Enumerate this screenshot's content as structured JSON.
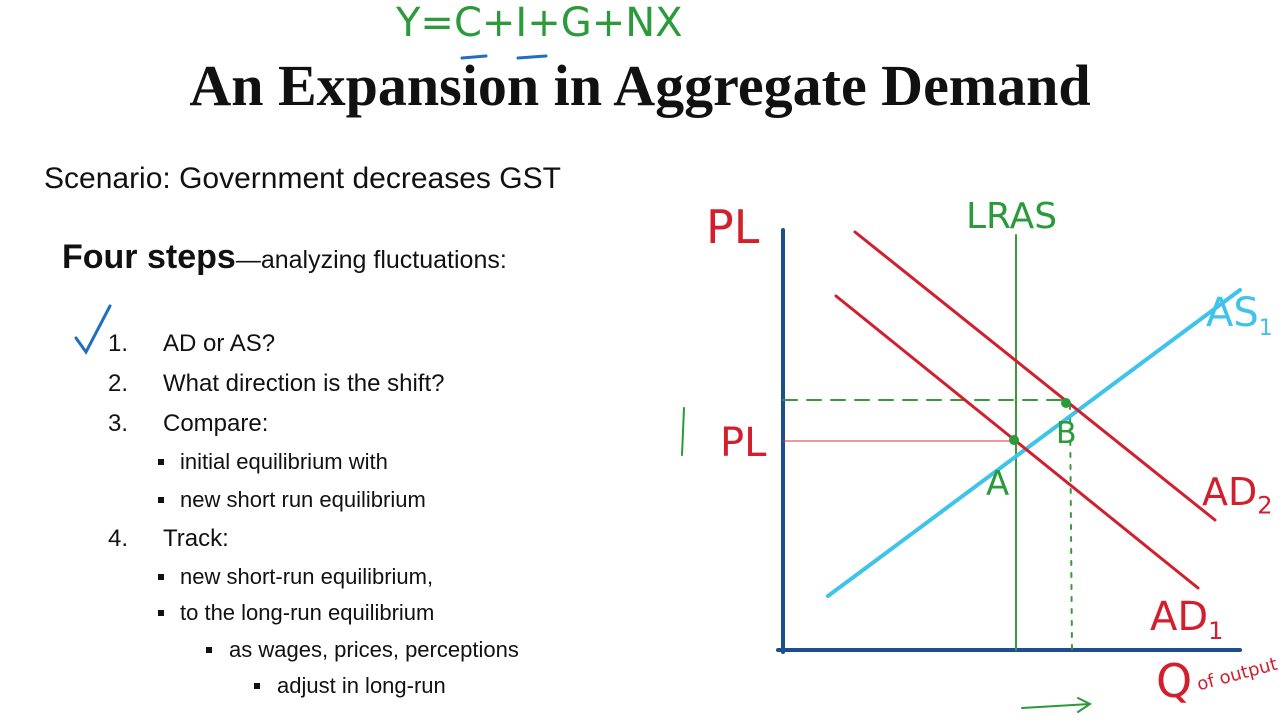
{
  "title": "An Expansion in Aggregate Demand",
  "scenario": "Scenario:  Government decreases GST",
  "steps_heading": {
    "bold": "Four steps",
    "rest": "—analyzing fluctuations:"
  },
  "steps": [
    {
      "number": "1.",
      "text": "AD or AS?"
    },
    {
      "number": "2.",
      "text": "What direction is the shift?"
    },
    {
      "number": "3.",
      "text": "Compare:",
      "sub": [
        {
          "text": "initial equilibrium with"
        },
        {
          "text": "new short run equilibrium"
        }
      ]
    },
    {
      "number": "4.",
      "text": "Track:",
      "sub": [
        {
          "text": "new short-run equilibrium,"
        },
        {
          "text": "to the long-run equilibrium",
          "sub": [
            {
              "text": "as wages, prices, perceptions",
              "sub": [
                {
                  "text": "adjust in long-run"
                }
              ]
            }
          ]
        }
      ]
    }
  ],
  "annotations": {
    "equation": "Y=C+I+G+NX",
    "y_axis": "PL",
    "x_axis": "Q",
    "x_axis_note": "of output",
    "lras": "LRAS",
    "as": "AS",
    "as_sub": "1",
    "ad2": "AD",
    "ad2_sub": "2",
    "ad1": "AD",
    "ad1_sub": "1",
    "point_a": "A",
    "point_b": "B",
    "price_mark": "PL"
  }
}
